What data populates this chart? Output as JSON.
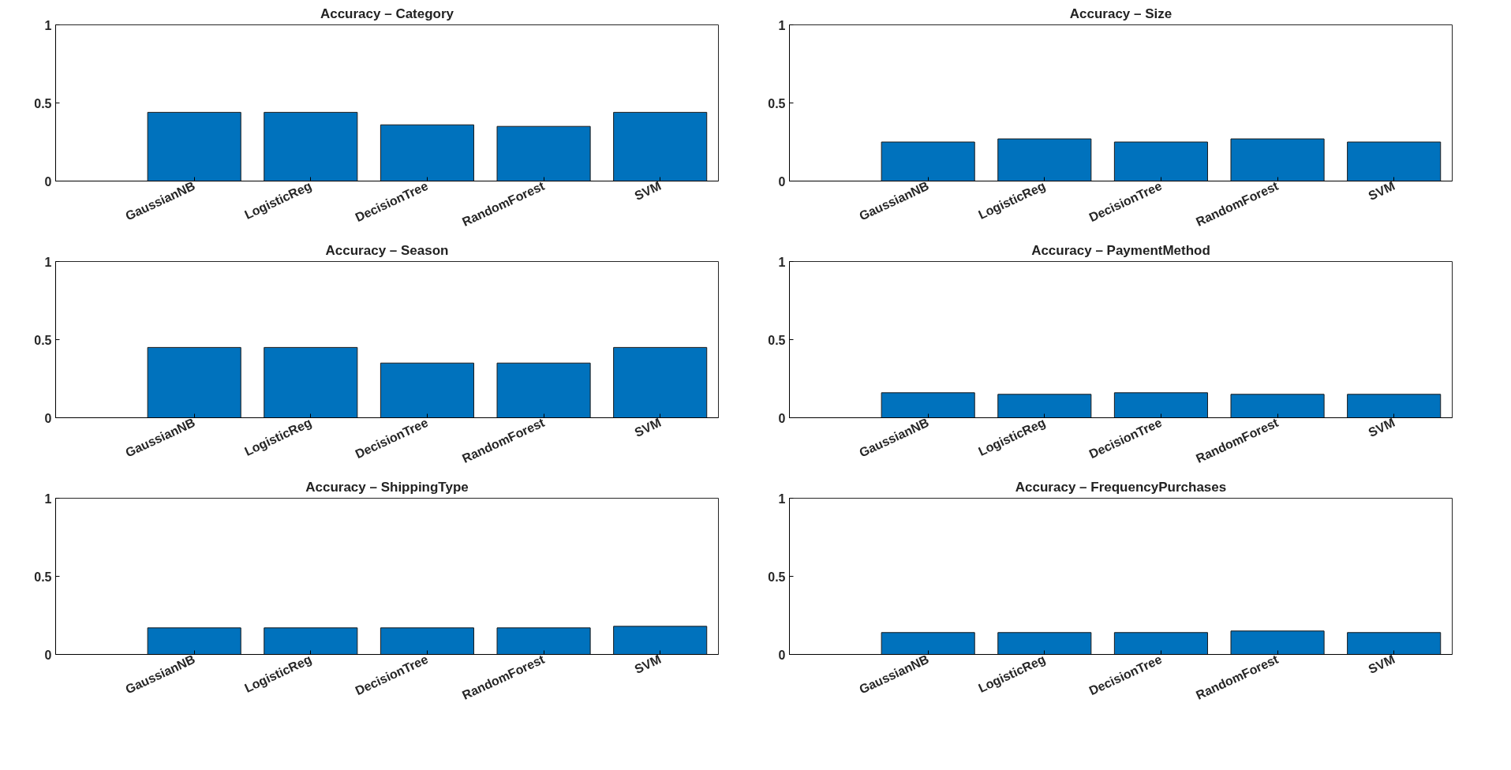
{
  "chart_data": [
    {
      "type": "bar",
      "title": "Accuracy – Category",
      "categories": [
        "GaussianNB",
        "LogisticReg",
        "DecisionTree",
        "RandomForest",
        "SVM"
      ],
      "values": [
        0.44,
        0.44,
        0.36,
        0.35,
        0.44
      ],
      "color": "#0072bd",
      "ylim": [
        0,
        1
      ],
      "yticks": [
        0,
        0.5,
        1
      ],
      "grid": false
    },
    {
      "type": "bar",
      "title": "Accuracy – Size",
      "categories": [
        "GaussianNB",
        "LogisticReg",
        "DecisionTree",
        "RandomForest",
        "SVM"
      ],
      "values": [
        0.25,
        0.27,
        0.25,
        0.27,
        0.25
      ],
      "color": "#0072bd",
      "ylim": [
        0,
        1
      ],
      "yticks": [
        0,
        0.5,
        1
      ],
      "grid": false
    },
    {
      "type": "bar",
      "title": "Accuracy – Season",
      "categories": [
        "GaussianNB",
        "LogisticReg",
        "DecisionTree",
        "RandomForest",
        "SVM"
      ],
      "values": [
        0.45,
        0.45,
        0.35,
        0.35,
        0.45
      ],
      "color": "#0072bd",
      "ylim": [
        0,
        1
      ],
      "yticks": [
        0,
        0.5,
        1
      ],
      "grid": false
    },
    {
      "type": "bar",
      "title": "Accuracy – PaymentMethod",
      "categories": [
        "GaussianNB",
        "LogisticReg",
        "DecisionTree",
        "RandomForest",
        "SVM"
      ],
      "values": [
        0.16,
        0.15,
        0.16,
        0.15,
        0.15
      ],
      "color": "#0072bd",
      "ylim": [
        0,
        1
      ],
      "yticks": [
        0,
        0.5,
        1
      ],
      "grid": false
    },
    {
      "type": "bar",
      "title": "Accuracy – ShippingType",
      "categories": [
        "GaussianNB",
        "LogisticReg",
        "DecisionTree",
        "RandomForest",
        "SVM"
      ],
      "values": [
        0.17,
        0.17,
        0.17,
        0.17,
        0.18
      ],
      "color": "#0072bd",
      "ylim": [
        0,
        1
      ],
      "yticks": [
        0,
        0.5,
        1
      ],
      "grid": false
    },
    {
      "type": "bar",
      "title": "Accuracy – FrequencyPurchases",
      "categories": [
        "GaussianNB",
        "LogisticReg",
        "DecisionTree",
        "RandomForest",
        "SVM"
      ],
      "values": [
        0.14,
        0.14,
        0.14,
        0.15,
        0.14
      ],
      "color": "#0072bd",
      "ylim": [
        0,
        1
      ],
      "yticks": [
        0,
        0.5,
        1
      ],
      "grid": false
    }
  ]
}
